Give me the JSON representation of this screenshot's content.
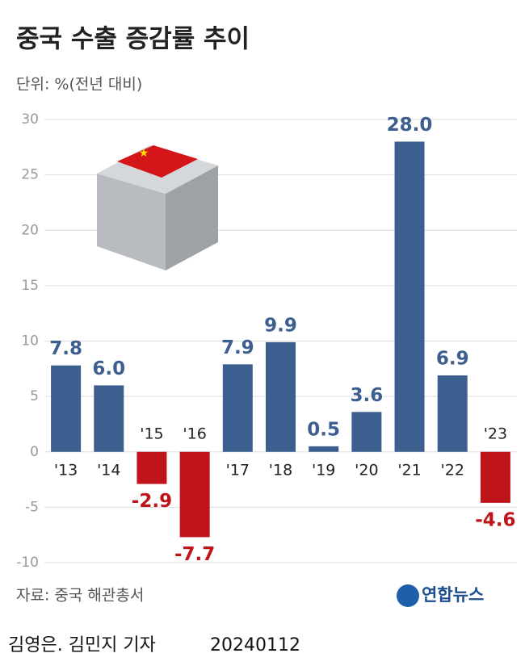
{
  "chart_data": {
    "type": "bar",
    "title": "중국 수출 증감률 추이",
    "subtitle": "단위: %(전년 대비)",
    "source": "자료: 중국 해관총서",
    "logo": "연합뉴스",
    "credit": "김영은. 김민지 기자",
    "date": "20240112",
    "categories": [
      "'13",
      "'14",
      "'15",
      "'16",
      "'17",
      "'18",
      "'19",
      "'20",
      "'21",
      "'22",
      "'23"
    ],
    "values": [
      7.8,
      6.0,
      -2.9,
      -7.7,
      7.9,
      9.9,
      0.5,
      3.6,
      28.0,
      6.9,
      -4.6
    ],
    "value_labels": [
      "7.8",
      "6.0",
      "-2.9",
      "-7.7",
      "7.9",
      "9.9",
      "0.5",
      "3.6",
      "28.0",
      "6.9",
      "-4.6"
    ],
    "colors": {
      "positive": "#3d5f8f",
      "negative": "#c0141b"
    },
    "ylim": [
      -10,
      30
    ],
    "yticks": [
      -10,
      -5,
      0,
      5,
      10,
      15,
      20,
      25,
      30
    ],
    "grid": true
  }
}
